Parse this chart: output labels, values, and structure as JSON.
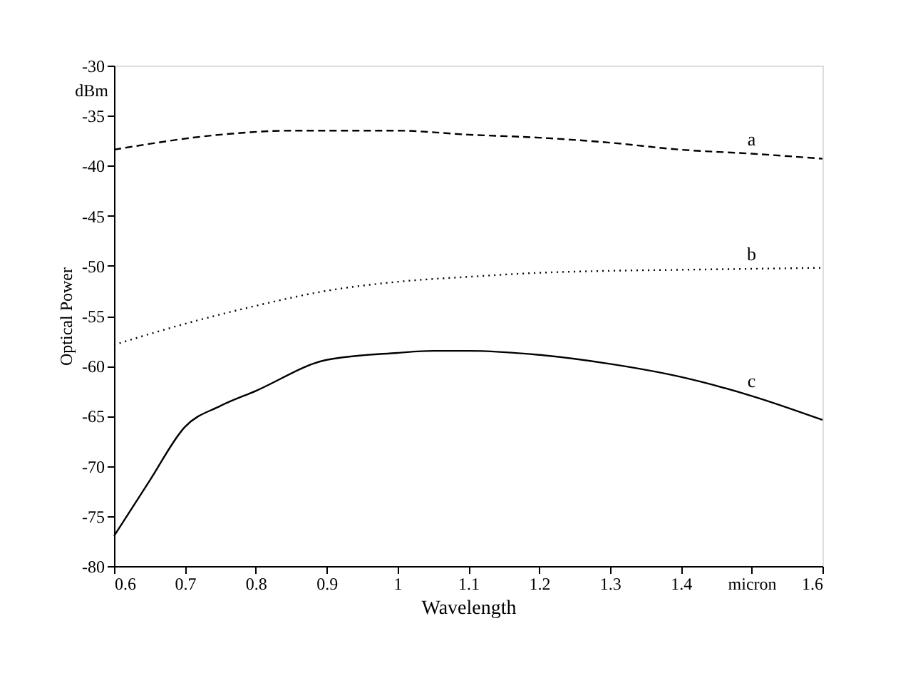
{
  "chart_data": {
    "type": "line",
    "xlabel": "Wavelength",
    "ylabel": "Optical Power",
    "annotations": [
      "dBm"
    ],
    "xlim": [
      0.6,
      1.6
    ],
    "ylim": [
      -80,
      -30
    ],
    "xticks": [
      0.6,
      0.7,
      0.8,
      0.9,
      1,
      1.1,
      1.2,
      1.3,
      1.4,
      {
        "value": 1.5,
        "label": "micron"
      },
      1.6
    ],
    "yticks": [
      -80,
      -75,
      -70,
      -65,
      -60,
      -55,
      -50,
      -45,
      -40,
      -35,
      -30
    ],
    "grid": false,
    "marker": "none",
    "series": [
      {
        "name": "a",
        "color": "#000000",
        "line_style": "dashed",
        "x": [
          0.6,
          0.75,
          0.85,
          1.0,
          1.1,
          1.2,
          1.3,
          1.4,
          1.5,
          1.6
        ],
        "values": [
          -38.4,
          -36.9,
          -36.5,
          -36.5,
          -36.9,
          -37.2,
          -37.7,
          -38.4,
          -38.8,
          -39.3
        ]
      },
      {
        "name": "b",
        "color": "#000000",
        "line_style": "dotted",
        "x": [
          0.6,
          0.7,
          0.8,
          0.9,
          1.0,
          1.1,
          1.2,
          1.3,
          1.4,
          1.5,
          1.6
        ],
        "values": [
          -57.9,
          -55.8,
          -54.0,
          -52.5,
          -51.6,
          -51.1,
          -50.7,
          -50.5,
          -50.4,
          -50.3,
          -50.2
        ]
      },
      {
        "name": "c",
        "color": "#000000",
        "line_style": "solid",
        "x": [
          0.6,
          0.65,
          0.7,
          0.75,
          0.8,
          0.9,
          1.0,
          1.05,
          1.1,
          1.2,
          1.3,
          1.4,
          1.5,
          1.6
        ],
        "values": [
          -77,
          -71.5,
          -66.1,
          -64,
          -62.5,
          -59.4,
          -58.7,
          -58.5,
          -58.5,
          -58.9,
          -59.8,
          -61.1,
          -63.0,
          -65.4
        ]
      }
    ]
  }
}
